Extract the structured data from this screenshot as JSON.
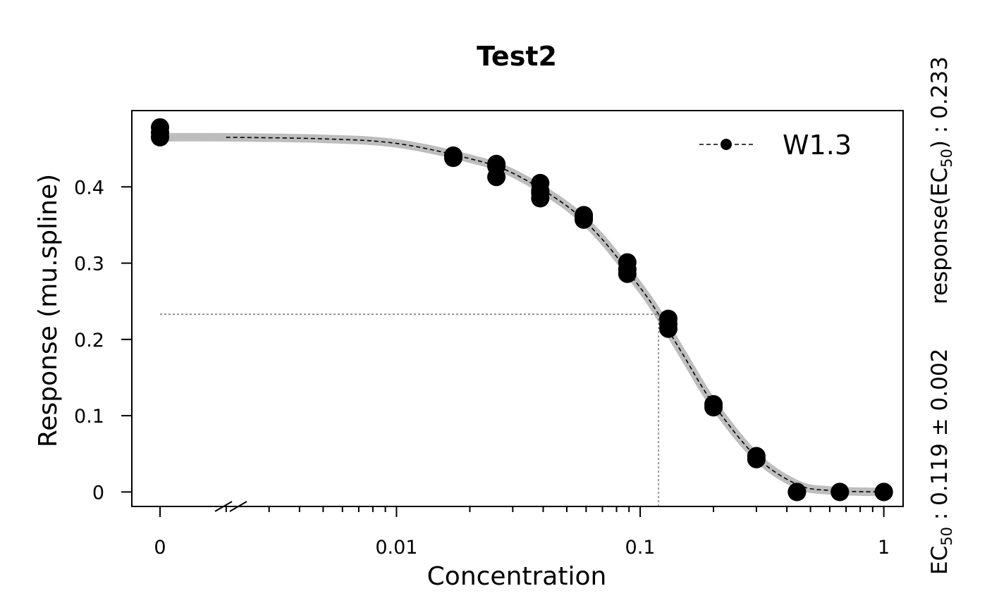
{
  "chart_data": {
    "type": "scatter",
    "title": "Test2",
    "xlabel": "Concentration",
    "ylabel": "Response (mu.spline)",
    "x_scale": "log",
    "x_axis_break": true,
    "x_ticks": [
      {
        "value": 0,
        "label": "0"
      },
      {
        "value": 0.01,
        "label": "0.01"
      },
      {
        "value": 0.1,
        "label": "0.1"
      },
      {
        "value": 1,
        "label": "1"
      }
    ],
    "y_ticks": [
      {
        "value": 0,
        "label": "0"
      },
      {
        "value": 0.1,
        "label": "0.1"
      },
      {
        "value": 0.2,
        "label": "0.2"
      },
      {
        "value": 0.3,
        "label": "0.3"
      },
      {
        "value": 0.4,
        "label": "0.4"
      }
    ],
    "xlim": [
      0.00082,
      1.2
    ],
    "ylim": [
      -0.019,
      0.5
    ],
    "grid": false,
    "legend": {
      "position": "top-right",
      "entries": [
        "W1.3"
      ]
    },
    "series": [
      {
        "name": "W1.3",
        "type": "scatter",
        "x": [
          0,
          0,
          0,
          0.0171,
          0.0171,
          0.0257,
          0.0257,
          0.0257,
          0.0389,
          0.0389,
          0.0389,
          0.0389,
          0.0587,
          0.0587,
          0.0587,
          0.0886,
          0.0886,
          0.0886,
          0.1305,
          0.1305,
          0.1305,
          0.2,
          0.2,
          0.3,
          0.3,
          0.44,
          0.44,
          0.66,
          0.66,
          1.0,
          1.0
        ],
        "y": [
          0.478,
          0.471,
          0.465,
          0.441,
          0.438,
          0.43,
          0.427,
          0.413,
          0.405,
          0.395,
          0.392,
          0.385,
          0.363,
          0.36,
          0.357,
          0.301,
          0.292,
          0.286,
          0.227,
          0.22,
          0.214,
          0.115,
          0.111,
          0.047,
          0.043,
          0.0,
          0.0,
          0.0,
          0.0,
          0.0,
          0.0
        ]
      }
    ],
    "fit_curve": {
      "model": "W1.3",
      "x": [
        0.002,
        0.005,
        0.01,
        0.02,
        0.03,
        0.05,
        0.07,
        0.1,
        0.119,
        0.15,
        0.2,
        0.3,
        0.44,
        0.6,
        1.0
      ],
      "y": [
        0.465,
        0.463,
        0.457,
        0.437,
        0.418,
        0.375,
        0.331,
        0.268,
        0.233,
        0.18,
        0.115,
        0.046,
        0.01,
        0.002,
        0.0
      ]
    },
    "ec50": {
      "x": 0.119,
      "response": 0.233
    },
    "annotations": {
      "ec50_label": "EC",
      "ec50_sub": "50",
      "ec50_value": " : 0.119 ± 0.002",
      "response_label_pre": "response(EC",
      "response_label_sub": "50",
      "response_label_post": ") : 0.233"
    }
  }
}
